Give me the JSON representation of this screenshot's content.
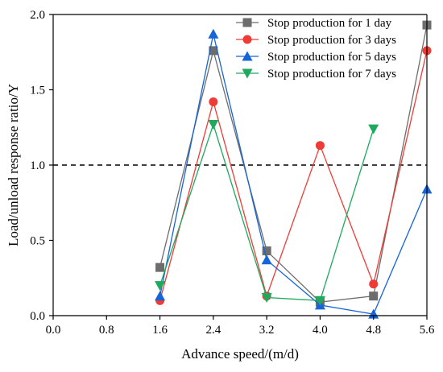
{
  "chart_data": {
    "type": "line",
    "xlabel": "Advance speed/(m/d)",
    "ylabel": "Load/unload response ratio/Y",
    "xlim": [
      0.0,
      5.6
    ],
    "ylim": [
      0.0,
      2.0
    ],
    "x_ticks": [
      "0.0",
      "0.8",
      "1.6",
      "2.4",
      "3.2",
      "4.0",
      "4.8",
      "5.6"
    ],
    "y_ticks": [
      "0.0",
      "0.5",
      "1.0",
      "1.5",
      "2.0"
    ],
    "reference_line": {
      "y": 1.0,
      "style": "dashed",
      "color": "#000000"
    },
    "grid": false,
    "legend_position": "top-right",
    "x": [
      1.6,
      2.4,
      3.2,
      4.0,
      4.8,
      5.6
    ],
    "series": [
      {
        "name": "Stop production for 1 day",
        "color": "#6d6d6d",
        "marker": "square",
        "values": [
          0.32,
          1.76,
          0.43,
          0.09,
          0.13,
          1.93
        ]
      },
      {
        "name": "Stop production for 3 days",
        "color": "#ef3b36",
        "marker": "circle",
        "values": [
          0.1,
          1.42,
          0.13,
          1.13,
          0.21,
          1.76
        ]
      },
      {
        "name": "Stop production for 5 days",
        "color": "#1565d8",
        "marker": "triangle-up",
        "values": [
          0.13,
          1.87,
          0.37,
          0.07,
          0.01,
          0.84
        ]
      },
      {
        "name": "Stop production for 7 days",
        "color": "#1daa5e",
        "marker": "triangle-down",
        "values": [
          0.2,
          1.27,
          0.12,
          0.1,
          1.24,
          null
        ]
      }
    ]
  }
}
